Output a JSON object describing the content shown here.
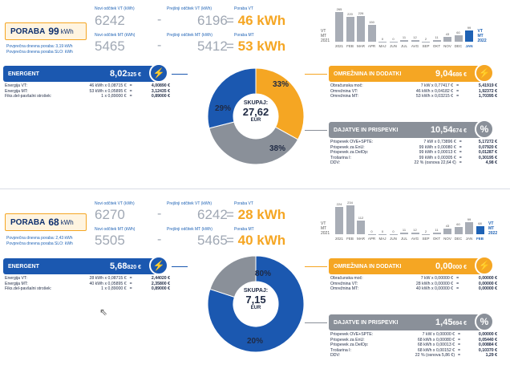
{
  "sections": [
    {
      "poraba_label": "PORABA",
      "poraba_value": "99",
      "poraba_unit": "kWh",
      "daily_lines": [
        "Povprečna dnevna poraba: 3,19 kWh",
        "Povprečna dnevna poraba SLO: kWh"
      ],
      "meter_labels": {
        "new_vt": "Novi odčitek VT (kWh)",
        "prev_vt": "Prejšnji odčitek VT (kWh)",
        "poraba_vt": "Poraba VT",
        "new_mt": "Novi odčitek MT (kWh)",
        "prev_mt": "Prejšnji odčitek MT (kWh)",
        "poraba_mt": "Poraba MT"
      },
      "vt_new": "6242",
      "vt_prev": "6196",
      "vt_usage": "46 kWh",
      "mt_new": "5465",
      "mt_prev": "5412",
      "mt_usage": "53 kWh",
      "bars": {
        "months": [
          "2021",
          "FEB",
          "MAR",
          "APR",
          "MAJ",
          "JUN",
          "JUL",
          "AVG",
          "SEP",
          "OKT",
          "NOV",
          "DEC",
          "JAN"
        ],
        "values": [
          265,
          220,
          226,
          150,
          0,
          0,
          11,
          12,
          2,
          11,
          43,
          60,
          99
        ],
        "labels": [
          "265",
          "220",
          "226",
          "150",
          "0",
          "0",
          "11",
          "12",
          "2",
          "11",
          "43",
          "60",
          "99"
        ],
        "highlight_index": 12,
        "max": 270,
        "legend_left": [
          "VT",
          "MT",
          "2021"
        ],
        "legend_right": [
          "VT",
          "MT",
          "2022"
        ]
      },
      "energent": {
        "title": "ENERGENT",
        "total_main": "8,02",
        "total_small": "325 €",
        "rows": [
          {
            "label": "Energija VT:",
            "calc": "46 kWh x 0,08715 €",
            "eq": "=",
            "amount": "4,00890 €"
          },
          {
            "label": "Energija MT:",
            "calc": "53 kWh x 0,05895 €",
            "eq": "=",
            "amount": "3,12435 €"
          },
          {
            "label": "Fiks.del-pavšalni strošek:",
            "calc": "1 x 0,89000 €",
            "eq": "=",
            "amount": "0,89000 €"
          }
        ]
      },
      "omreznina": {
        "title": "OMREŽNINA IN DODATKI",
        "total_main": "9,04",
        "total_small": "686 €",
        "rows": [
          {
            "label": "Obračunska moč:",
            "calc": "7 kW x 0,77417 €",
            "eq": "=",
            "amount": "5,41919 €"
          },
          {
            "label": "Omrežnina VT:",
            "calc": "46 kWh x 0,04182 €",
            "eq": "=",
            "amount": "1,92372 €"
          },
          {
            "label": "Omrežnina MT:",
            "calc": "53 kWh x 0,03215 €",
            "eq": "=",
            "amount": "1,70395 €"
          }
        ]
      },
      "dajatve": {
        "title": "DAJATVE IN PRISPEVKI",
        "total_main": "10,54",
        "total_small": "674 €",
        "rows": [
          {
            "label": "Prispevek OVE+SPTE:",
            "calc": "7 kW x 0,73896 €",
            "eq": "=",
            "amount": "5,17272 €"
          },
          {
            "label": "Prispevek za EnU:",
            "calc": "99 kWh x 0,00080 €",
            "eq": "=",
            "amount": "0,07920 €"
          },
          {
            "label": "Prispevek za DelOp:",
            "calc": "99 kWh x 0,00013 €",
            "eq": "=",
            "amount": "0,01287 €"
          },
          {
            "label": "Trošarina I:",
            "calc": "99 kWh x 0,00305 €",
            "eq": "=",
            "amount": "0,30195 €"
          },
          {
            "label": "DDV:",
            "calc": "22 % (osnova 22,64 €)",
            "eq": "=",
            "amount": "4,98 €"
          }
        ]
      },
      "donut": {
        "center_label": "SKUPAJ:",
        "center_value": "27,62",
        "center_unit": "EUR",
        "segments": [
          {
            "name": "omreznina",
            "pct": 33,
            "label": "33%",
            "color": "#f5a623"
          },
          {
            "name": "dajatve",
            "pct": 38,
            "label": "38%",
            "color": "#8a9099"
          },
          {
            "name": "energent",
            "pct": 29,
            "label": "29%",
            "color": "#1b58b0"
          }
        ]
      }
    },
    {
      "poraba_label": "PORABA",
      "poraba_value": "68",
      "poraba_unit": "kWh",
      "daily_lines": [
        "Povprečna dnevna poraba: 2,43 kWh",
        "Povprečna dnevna poraba SLO: kWh"
      ],
      "meter_labels": {
        "new_vt": "Novi odčitek VT (kWh)",
        "prev_vt": "Prejšnji odčitek VT (kWh)",
        "poraba_vt": "Poraba VT",
        "new_mt": "Novi odčitek MT (kWh)",
        "prev_mt": "Prejšnji odčitek MT (kWh)",
        "poraba_mt": "Poraba MT"
      },
      "vt_new": "6270",
      "vt_prev": "6242",
      "vt_usage": "28 kWh",
      "mt_new": "5505",
      "mt_prev": "5465",
      "mt_usage": "40 kWh",
      "bars": {
        "months": [
          "2021",
          "FEB",
          "MAR",
          "APR",
          "MAJ",
          "JUN",
          "JUL",
          "AVG",
          "SEP",
          "OKT",
          "NOV",
          "DEC",
          "JAN",
          "FEB"
        ],
        "values": [
          224,
          234,
          112,
          0,
          0,
          0,
          11,
          12,
          2,
          11,
          43,
          60,
          99,
          68
        ],
        "labels": [
          "224",
          "234",
          "112",
          "0",
          "0",
          "0",
          "11",
          "12",
          "2",
          "11",
          "43",
          "60",
          "99",
          "68"
        ],
        "highlight_index": 13,
        "max": 250,
        "legend_left": [
          "VT",
          "MT",
          "2021"
        ],
        "legend_right": [
          "VT",
          "MT",
          "2022"
        ]
      },
      "energent": {
        "title": "ENERGENT",
        "total_main": "5,68",
        "total_small": "820 €",
        "rows": [
          {
            "label": "Energija VT:",
            "calc": "28 kWh x 0,08715 €",
            "eq": "=",
            "amount": "2,44020 €"
          },
          {
            "label": "Energija MT:",
            "calc": "40 kWh x 0,05895 €",
            "eq": "=",
            "amount": "2,35800 €"
          },
          {
            "label": "Fiks.del-pavšalni strošek:",
            "calc": "1 x 0,89000 €",
            "eq": "=",
            "amount": "0,89000 €"
          }
        ]
      },
      "omreznina": {
        "title": "OMREŽNINA IN DODATKI",
        "total_main": "0,00",
        "total_small": "000 €",
        "rows": [
          {
            "label": "Obračunska moč:",
            "calc": "7 kW x 0,00000 €",
            "eq": "=",
            "amount": "0,00000 €"
          },
          {
            "label": "Omrežnina VT:",
            "calc": "28 kWh x 0,00000 €",
            "eq": "=",
            "amount": "0,00000 €"
          },
          {
            "label": "Omrežnina MT:",
            "calc": "40 kWh x 0,00000 €",
            "eq": "=",
            "amount": "0,00000 €"
          }
        ]
      },
      "dajatve": {
        "title": "DAJATVE IN PRISPEVKI",
        "total_main": "1,45",
        "total_small": "694 €",
        "rows": [
          {
            "label": "Prispevek OVE+SPTE:",
            "calc": "7 kW x 0,00000 €",
            "eq": "=",
            "amount": "0,00000 €"
          },
          {
            "label": "Prispevek za EnU:",
            "calc": "68 kWh x 0,00080 €",
            "eq": "=",
            "amount": "0,05440 €"
          },
          {
            "label": "Prispevek za DelOp:",
            "calc": "68 kWh x 0,00013 €",
            "eq": "=",
            "amount": "0,00884 €"
          },
          {
            "label": "Trošarina I:",
            "calc": "68 kWh x 0,00152 €",
            "eq": "=",
            "amount": "0,10370 €"
          },
          {
            "label": "DDV:",
            "calc": "22 % (osnova 5,86 €)",
            "eq": "=",
            "amount": "1,29 €"
          }
        ]
      },
      "donut": {
        "center_label": "SKUPAJ:",
        "center_value": "7,15",
        "center_unit": "EUR",
        "segments": [
          {
            "name": "energent",
            "pct": 80,
            "label": "80%",
            "color": "#1b58b0"
          },
          {
            "name": "dajatve",
            "pct": 20,
            "label": "20%",
            "color": "#8a9099"
          }
        ]
      }
    }
  ]
}
